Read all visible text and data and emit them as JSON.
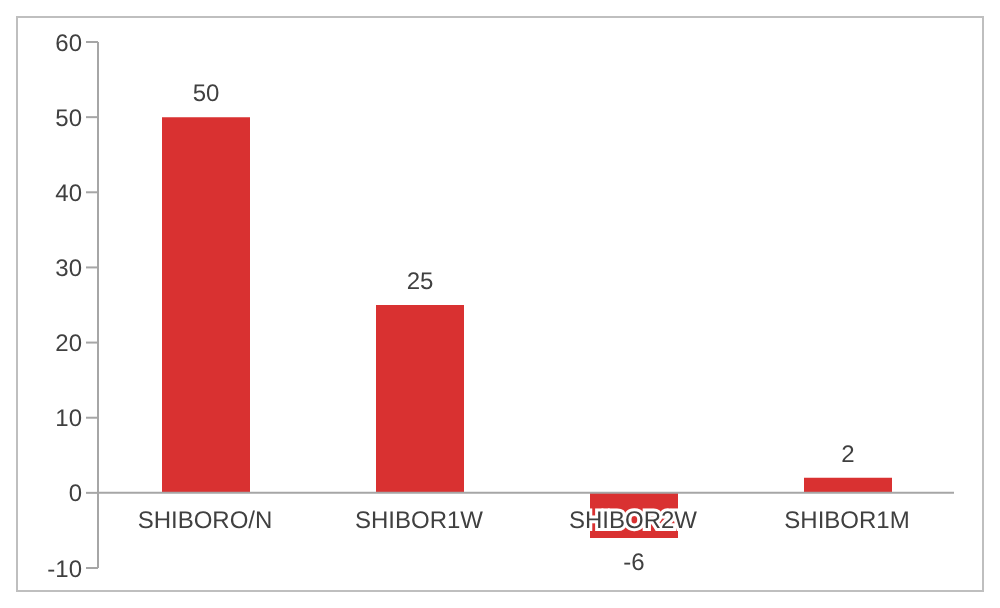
{
  "chart_data": {
    "type": "bar",
    "categories": [
      "SHIBORO/N",
      "SHIBOR1W",
      "SHIBOR2W",
      "SHIBOR1M"
    ],
    "values": [
      50,
      25,
      -6,
      2
    ],
    "color": "#d93131",
    "ylim": [
      -10,
      60
    ],
    "yticks": [
      -10,
      0,
      10,
      20,
      30,
      40,
      50,
      60
    ],
    "data_labels": true
  }
}
